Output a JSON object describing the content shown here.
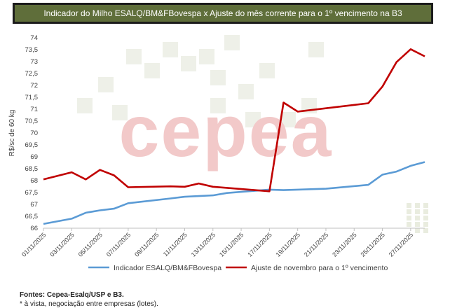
{
  "header": {
    "title": "Indicador do Milho ESALQ/BM&FBovespa x Ajuste do mês corrente para o 1º vencimento na B3"
  },
  "footer": {
    "sources": "Fontes: Cepea-Esalq/USP e B3.",
    "note": "*  à vista, negociação entre empresas (lotes)."
  },
  "watermark": {
    "text": "cepea"
  },
  "colors": {
    "series1": "#5b9bd5",
    "series2": "#c00000",
    "title_bg": "#5f6e3a",
    "watermark": "#f2c9c9",
    "grid": "#d9d9d9"
  },
  "chart_data": {
    "type": "line",
    "title": "Indicador do Milho ESALQ/BM&FBovespa x Ajuste do mês corrente para o 1º vencimento na B3",
    "ylabel": "R$/sc de 60 kg",
    "xlabel": "",
    "ylim": [
      66,
      74
    ],
    "yticks": [
      "66",
      "66,5",
      "67",
      "67,5",
      "68",
      "68,5",
      "69",
      "69,5",
      "70",
      "70,5",
      "71",
      "71,5",
      "72",
      "72,5",
      "73",
      "73,5",
      "74"
    ],
    "xticks": [
      "01/11/2025",
      "03/11/2025",
      "05/11/2025",
      "07/11/2025",
      "09/11/2025",
      "11/11/2025",
      "13/11/2025",
      "15/11/2025",
      "17/11/2025",
      "19/11/2025",
      "21/11/2025",
      "23/11/2025",
      "25/11/2025",
      "27/11/2025"
    ],
    "xdomain": [
      "01/11/2025",
      "28/11/2025"
    ],
    "grid": false,
    "legend_position": "bottom",
    "series": [
      {
        "name": "Indicador ESALQ/BM&FBovespa",
        "color": "#5b9bd5",
        "points": [
          [
            "01/11/2025",
            66.18
          ],
          [
            "03/11/2025",
            66.4
          ],
          [
            "04/11/2025",
            66.65
          ],
          [
            "05/11/2025",
            66.75
          ],
          [
            "06/11/2025",
            66.82
          ],
          [
            "07/11/2025",
            67.05
          ],
          [
            "10/11/2025",
            67.25
          ],
          [
            "11/11/2025",
            67.32
          ],
          [
            "12/11/2025",
            67.35
          ],
          [
            "13/11/2025",
            67.38
          ],
          [
            "14/11/2025",
            67.48
          ],
          [
            "17/11/2025",
            67.62
          ],
          [
            "18/11/2025",
            67.6
          ],
          [
            "19/11/2025",
            67.62
          ],
          [
            "21/11/2025",
            67.66
          ],
          [
            "24/11/2025",
            67.82
          ],
          [
            "25/11/2025",
            68.25
          ],
          [
            "26/11/2025",
            68.38
          ],
          [
            "27/11/2025",
            68.62
          ],
          [
            "28/11/2025",
            68.78
          ]
        ]
      },
      {
        "name": "Ajuste de novembro para o 1º vencimento",
        "color": "#c00000",
        "points": [
          [
            "01/11/2025",
            68.05
          ],
          [
            "03/11/2025",
            68.35
          ],
          [
            "04/11/2025",
            68.05
          ],
          [
            "05/11/2025",
            68.45
          ],
          [
            "06/11/2025",
            68.22
          ],
          [
            "07/11/2025",
            67.72
          ],
          [
            "10/11/2025",
            67.76
          ],
          [
            "11/11/2025",
            67.74
          ],
          [
            "12/11/2025",
            67.88
          ],
          [
            "13/11/2025",
            67.74
          ],
          [
            "17/11/2025",
            67.55
          ],
          [
            "18/11/2025",
            71.28
          ],
          [
            "19/11/2025",
            70.9
          ],
          [
            "24/11/2025",
            71.25
          ],
          [
            "25/11/2025",
            71.95
          ],
          [
            "26/11/2025",
            72.98
          ],
          [
            "27/11/2025",
            73.52
          ],
          [
            "28/11/2025",
            73.22
          ]
        ]
      }
    ]
  }
}
